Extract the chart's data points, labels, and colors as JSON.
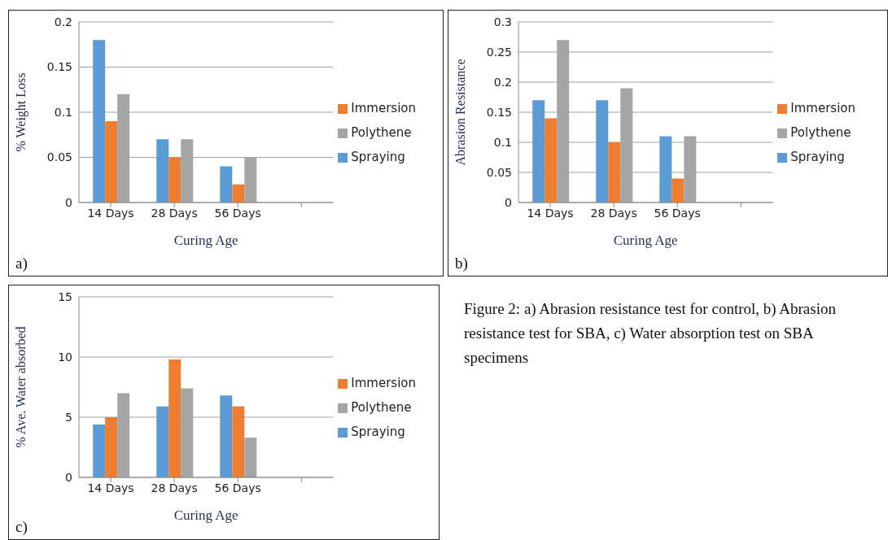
{
  "chart_data": [
    {
      "type": "bar",
      "xlabel": "Curing Age",
      "ylabel": "% Weight Loss",
      "categories": [
        "14 Days",
        "28 Days",
        "56 Days",
        null
      ],
      "series": [
        {
          "name": "Spraying",
          "color": "#5b9bd5",
          "values": [
            0.18,
            0.07,
            0.04,
            null
          ]
        },
        {
          "name": "Immersion",
          "color": "#ed7d31",
          "values": [
            0.09,
            0.05,
            0.02,
            null
          ]
        },
        {
          "name": "Polythene",
          "color": "#a5a5a5",
          "values": [
            0.12,
            0.07,
            0.05,
            null
          ]
        }
      ],
      "ylim": [
        0,
        0.2
      ],
      "yticks": [
        0,
        0.05,
        0.1,
        0.15,
        0.2
      ],
      "grid": "y",
      "legend": "right",
      "annotations": [
        "a)"
      ]
    },
    {
      "type": "bar",
      "xlabel": "Curing Age",
      "ylabel": "Abrasion Resistance",
      "categories": [
        "14 Days",
        "28 Days",
        "56 Days",
        null
      ],
      "series": [
        {
          "name": "Spraying",
          "color": "#5b9bd5",
          "values": [
            0.17,
            0.17,
            0.11,
            null
          ]
        },
        {
          "name": "Immersion",
          "color": "#ed7d31",
          "values": [
            0.14,
            0.1,
            0.04,
            null
          ]
        },
        {
          "name": "Polythene",
          "color": "#a5a5a5",
          "values": [
            0.27,
            0.19,
            0.11,
            null
          ]
        }
      ],
      "ylim": [
        0,
        0.3
      ],
      "yticks": [
        0,
        0.05,
        0.1,
        0.15,
        0.2,
        0.25,
        0.3
      ],
      "grid": "y",
      "legend": "right",
      "annotations": [
        "b)"
      ]
    },
    {
      "type": "bar",
      "xlabel": "Curing Age",
      "ylabel": "% Ave. Water absorbed",
      "categories": [
        "14 Days",
        "28 Days",
        "56 Days",
        null
      ],
      "series": [
        {
          "name": "Spraying",
          "color": "#5b9bd5",
          "values": [
            4.4,
            5.9,
            6.8,
            null
          ]
        },
        {
          "name": "Immersion",
          "color": "#ed7d31",
          "values": [
            5.0,
            9.8,
            5.9,
            null
          ]
        },
        {
          "name": "Polythene",
          "color": "#a5a5a5",
          "values": [
            7.0,
            7.4,
            3.3,
            null
          ]
        }
      ],
      "ylim": [
        0,
        15
      ],
      "yticks": [
        0,
        5,
        10,
        15
      ],
      "grid": "y",
      "legend": "right",
      "annotations": [
        "c)"
      ]
    },
    {
      "type": "other",
      "annotations": [
        "Figure 2: a) Abrasion resistance test for control, b) Abrasion resistance test for SBA, c) Water absorption test on SBA specimens"
      ]
    }
  ]
}
